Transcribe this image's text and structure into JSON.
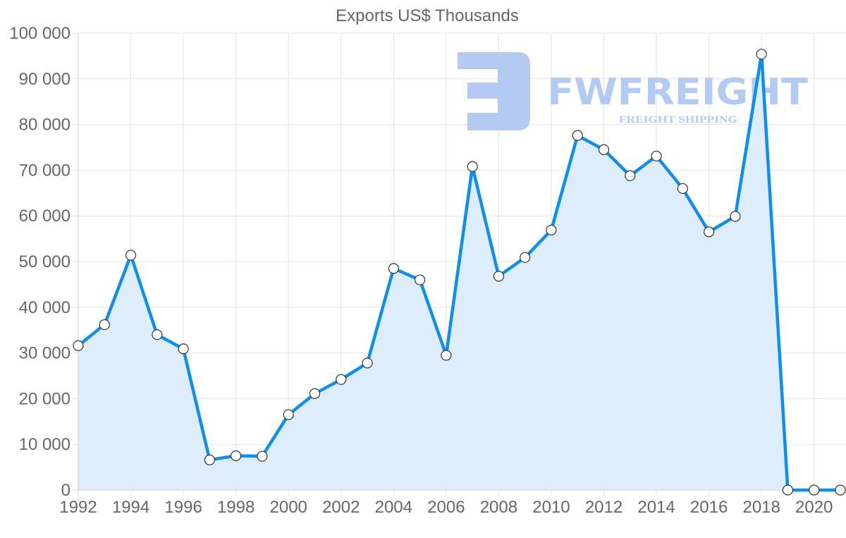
{
  "chart_data": {
    "type": "area",
    "title": "Exports US$ Thousands",
    "xlabel": "",
    "ylabel": "",
    "x": [
      1992,
      1993,
      1994,
      1995,
      1996,
      1997,
      1998,
      1999,
      2000,
      2001,
      2002,
      2003,
      2004,
      2005,
      2006,
      2007,
      2008,
      2009,
      2010,
      2011,
      2012,
      2013,
      2014,
      2015,
      2016,
      2017,
      2018,
      2019,
      2020,
      2021
    ],
    "series": [
      {
        "name": "Exports US$ Thousands",
        "values": [
          31600,
          36200,
          51400,
          34000,
          30900,
          6600,
          7500,
          7400,
          16500,
          21100,
          24200,
          27800,
          48500,
          46000,
          29500,
          70800,
          46800,
          50900,
          56900,
          77600,
          74500,
          68800,
          73100,
          66000,
          56500,
          59900,
          95400,
          0,
          0,
          0
        ]
      }
    ],
    "ylim": [
      0,
      100000
    ],
    "yticks": [
      0,
      10000,
      20000,
      30000,
      40000,
      50000,
      60000,
      70000,
      80000,
      90000,
      100000
    ],
    "ytick_labels": [
      "0",
      "10 000",
      "20 000",
      "30 000",
      "40 000",
      "50 000",
      "60 000",
      "70 000",
      "80 000",
      "90 000",
      "100 000"
    ],
    "xtick_labels": [
      "1992",
      "1994",
      "1996",
      "1998",
      "2000",
      "2002",
      "2004",
      "2006",
      "2008",
      "2010",
      "2012",
      "2014",
      "2016",
      "2018",
      "2020"
    ],
    "grid": true,
    "legend": "none",
    "colors": {
      "line": "#0e8ff0",
      "fill": "#dbecfc",
      "point_fill": "#ffffff",
      "point_stroke": "#333333",
      "grid": "#e3e3e3",
      "text": "#666666"
    }
  },
  "watermark": {
    "brand": "FWFREIGHT",
    "tagline": "FREIGHT SHIPPING",
    "color": "#b3cbf3"
  }
}
